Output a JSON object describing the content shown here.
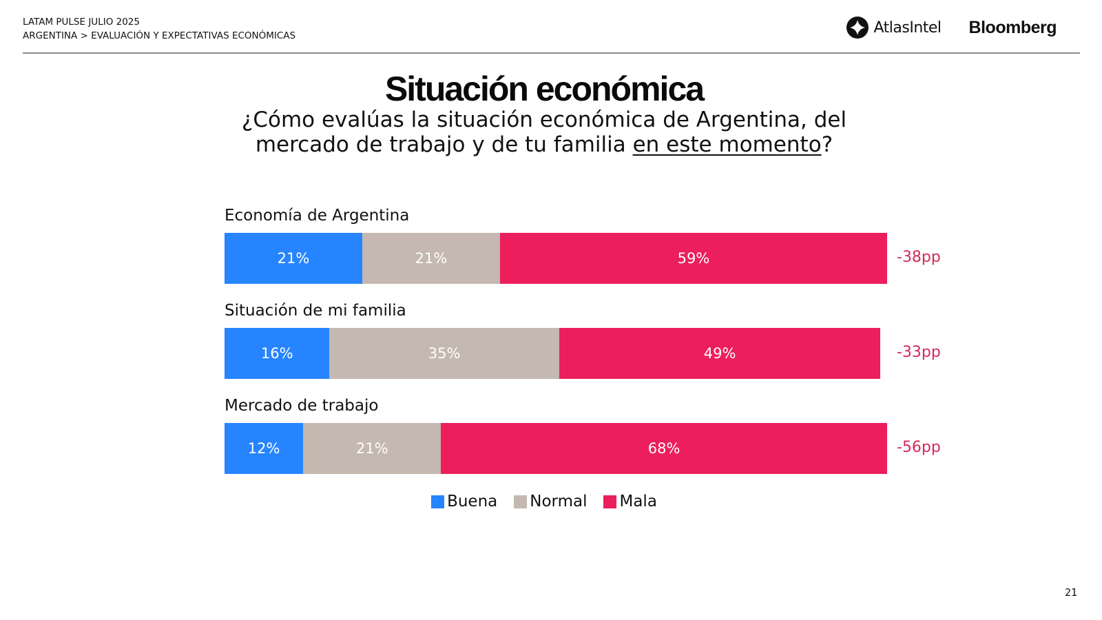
{
  "header": {
    "line1": "LATAM PULSE JULIO 2025",
    "line2": "ARGENTINA > EVALUACIÓN Y EXPECTATIVAS ECONÓMICAS",
    "logo_atlas": "AtlasIntel",
    "logo_bloomberg": "Bloomberg"
  },
  "page_number": "21",
  "chart_data": {
    "type": "bar",
    "orientation": "horizontal-stacked-100",
    "title": "Situación económica",
    "subtitle_part1": "¿Cómo evalúas la situación económica de Argentina, del",
    "subtitle_part2": "mercado de trabajo y de tu familia ",
    "subtitle_underlined": "en este momento",
    "subtitle_end": "?",
    "categories": [
      "Economía de Argentina",
      "Situación de mi familia",
      "Mercado de trabajo"
    ],
    "series": [
      {
        "name": "Buena",
        "color": "#2684ff",
        "values": [
          21,
          16,
          12
        ],
        "labels": [
          "21%",
          "16%",
          "12%"
        ]
      },
      {
        "name": "Normal",
        "color": "#c4b8b0",
        "values": [
          21,
          35,
          21
        ],
        "labels": [
          "21%",
          "35%",
          "21%"
        ]
      },
      {
        "name": "Mala",
        "color": "#ec1e5c",
        "values": [
          59,
          49,
          68
        ],
        "labels": [
          "59%",
          "49%",
          "68%"
        ]
      }
    ],
    "net_labels": [
      "-38pp",
      "-33pp",
      "-56pp"
    ],
    "net_color": "#d12a5a",
    "legend_position": "bottom-center",
    "xlim": [
      0,
      101
    ]
  }
}
